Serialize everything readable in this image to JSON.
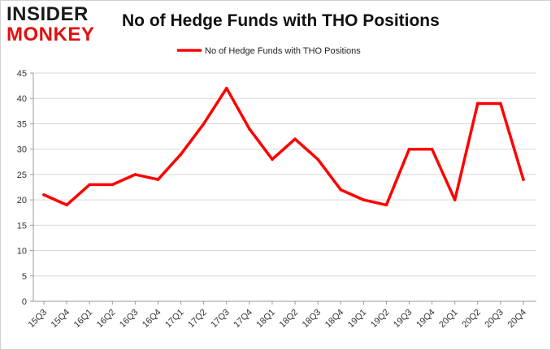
{
  "logo": {
    "line1": "INSIDER",
    "line2": "MONKEY"
  },
  "colors": {
    "series": "#ff0000",
    "grid": "#d9d9d9",
    "axis": "#999999"
  },
  "chart_data": {
    "type": "line",
    "title": "No of Hedge Funds with THO Positions",
    "xlabel": "",
    "ylabel": "",
    "legend_position": "top-center",
    "grid": true,
    "ylim": [
      0,
      45
    ],
    "yticks": [
      0,
      5,
      10,
      15,
      20,
      25,
      30,
      35,
      40,
      45
    ],
    "categories": [
      "15Q3",
      "15Q4",
      "16Q1",
      "16Q2",
      "16Q3",
      "16Q4",
      "17Q1",
      "17Q2",
      "17Q3",
      "17Q4",
      "18Q1",
      "18Q2",
      "18Q3",
      "18Q4",
      "19Q1",
      "19Q2",
      "19Q3",
      "19Q4",
      "20Q1",
      "20Q2",
      "20Q3",
      "20Q4"
    ],
    "series": [
      {
        "name": "No of Hedge Funds with THO Positions",
        "values": [
          21,
          19,
          23,
          23,
          25,
          24,
          29,
          35,
          42,
          34,
          28,
          32,
          28,
          22,
          20,
          19,
          30,
          30,
          20,
          39,
          39,
          24
        ]
      }
    ]
  }
}
